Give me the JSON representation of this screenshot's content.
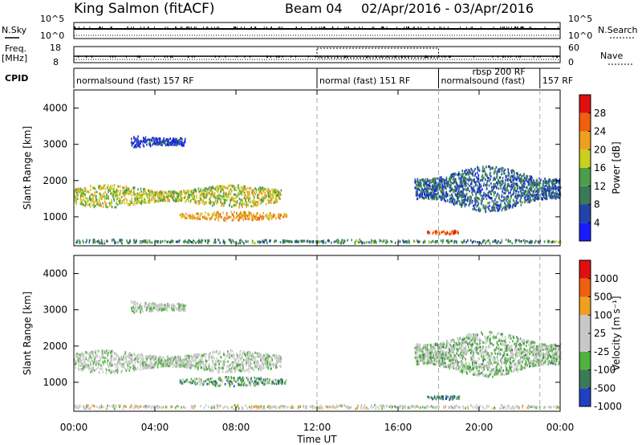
{
  "header": {
    "station": "King Salmon (fitACF)",
    "beam": "Beam 04",
    "date_range": "02/Apr/2016 - 03/Apr/2016"
  },
  "top_panels": {
    "nsky_label": "N.Sky",
    "nsky_ticks": [
      "10^5",
      "10^0"
    ],
    "nsky_right_ticks": [
      "10^5",
      "10^0"
    ],
    "nsearch_label": "N.Search",
    "freq_label": "Freq.",
    "freq_unit": "[MHz]",
    "freq_ticks": [
      "18",
      "8"
    ],
    "nave_ticks": [
      "60",
      "0"
    ],
    "nave_label": "Nave",
    "cpid_label": "CPID",
    "cpid_segments": [
      {
        "label": "normalsound (fast) 157 RF",
        "start": 0,
        "end": 12
      },
      {
        "label": "normal (fast) 151 RF",
        "start": 12,
        "end": 18
      },
      {
        "label": "rbsp 200 RF",
        "start": 18,
        "end": 23,
        "sub": "normalsound (fast)"
      },
      {
        "label": "157 RF",
        "start": 23,
        "end": 24
      }
    ]
  },
  "colors": {
    "power": [
      "#1a1aff",
      "#2244aa",
      "#3a7a5a",
      "#4aa04a",
      "#c8d020",
      "#f0a020",
      "#f06010",
      "#e01010"
    ],
    "velocity": [
      "#2040c0",
      "#3a7a5a",
      "#50b040",
      "#c8c8c8",
      "#c8c8c8",
      "#f0a020",
      "#f06010",
      "#e01010"
    ]
  },
  "chart_data": [
    {
      "type": "heatmap",
      "title": "Power",
      "xlabel": "",
      "ylabel": "Slant Range [km]",
      "x_ticks": [
        "00:00",
        "04:00",
        "08:00",
        "12:00",
        "16:00",
        "20:00",
        "00:00"
      ],
      "xlim_hours": [
        0,
        24
      ],
      "y_ticks": [
        1000,
        2000,
        3000,
        4000
      ],
      "ylim": [
        200,
        4500
      ],
      "colorbar_label": "Power [dB]",
      "colorbar_ticks": [
        4,
        8,
        12,
        16,
        20,
        24,
        28
      ],
      "regions": [
        {
          "t0": 0.0,
          "t1": 10.2,
          "r_mid": 1600,
          "r_width": 450,
          "level": 0.55
        },
        {
          "t0": 5.2,
          "t1": 10.5,
          "r_mid": 1050,
          "r_width": 180,
          "level": 0.7
        },
        {
          "t0": 2.8,
          "t1": 5.5,
          "r_mid": 3100,
          "r_width": 300,
          "level": 0.15
        },
        {
          "t0": 16.8,
          "t1": 24.0,
          "r_mid": 1800,
          "r_width": 900,
          "level": 0.25
        },
        {
          "t0": 17.4,
          "t1": 19.0,
          "r_mid": 600,
          "r_width": 120,
          "level": 0.85
        },
        {
          "t0": 0.0,
          "t1": 24.0,
          "r_mid": 350,
          "r_width": 80,
          "level": 0.35
        }
      ]
    },
    {
      "type": "heatmap",
      "title": "Velocity",
      "xlabel": "Time UT",
      "ylabel": "Slant Range [km]",
      "x_ticks": [
        "00:00",
        "04:00",
        "08:00",
        "12:00",
        "16:00",
        "20:00",
        "00:00"
      ],
      "xlim_hours": [
        0,
        24
      ],
      "y_ticks": [
        1000,
        2000,
        3000,
        4000
      ],
      "ylim": [
        200,
        4500
      ],
      "colorbar_label": "Velocity [m s⁻¹]",
      "colorbar_ticks": [
        1000,
        500,
        100,
        25,
        -25,
        -100,
        -500,
        -1000
      ],
      "regions": [
        {
          "t0": 0.0,
          "t1": 10.2,
          "r_mid": 1600,
          "r_width": 450,
          "level": 0.45
        },
        {
          "t0": 5.2,
          "t1": 10.5,
          "r_mid": 1050,
          "r_width": 180,
          "level": 0.28
        },
        {
          "t0": 2.8,
          "t1": 5.5,
          "r_mid": 3100,
          "r_width": 300,
          "level": 0.45
        },
        {
          "t0": 16.8,
          "t1": 24.0,
          "r_mid": 1800,
          "r_width": 900,
          "level": 0.4
        },
        {
          "t0": 17.4,
          "t1": 19.0,
          "r_mid": 600,
          "r_width": 120,
          "level": 0.22
        },
        {
          "t0": 0.0,
          "t1": 24.0,
          "r_mid": 350,
          "r_width": 80,
          "level": 0.5
        }
      ]
    }
  ]
}
